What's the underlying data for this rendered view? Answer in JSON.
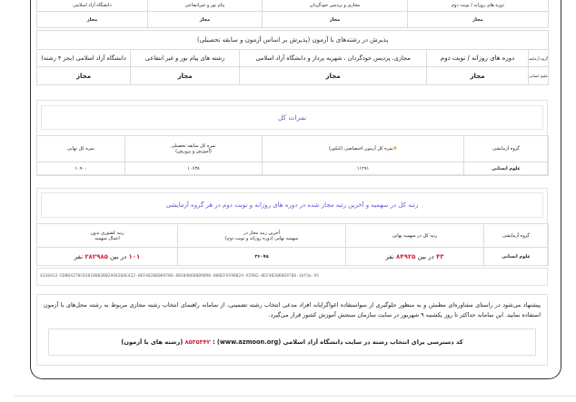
{
  "quota_table": {
    "headers": [
      "دوره های روزانه / نوبت دوم",
      "مجازی و پردیس خودگردان",
      "پیام نور و غیرانتفاعی",
      "دانشگاه آزاد اسلامی"
    ],
    "values": [
      "مجاز",
      "مجاز",
      "مجاز",
      "مجاز"
    ]
  },
  "exam_admission": {
    "title": "پذیرش در رشته‌های با آزمون (پذیرش بر اساس آزمون و سابقه تحصیلی)",
    "headers": [
      "گروه آزمایشی",
      "دوره های روزانه / نوبت دوم",
      "مجازی، پردیس خودگردان ، شهریه پرداز و دانشگاه آزاد اسلامی",
      "رشته های پیام نور و غیر انتفاعی",
      "دانشگاه آزاد اسلامی (بجز ۴ رشته)"
    ],
    "row": [
      "علوم انسانی",
      "مجاز",
      "مجاز",
      "مجاز",
      "مجاز"
    ]
  },
  "scores": {
    "title": "نمرات کل",
    "headers": [
      "گروه آزمایشی",
      "نمره کل آزمون اختصاصی (کنکور)",
      "نمره کل سابقه تحصیلی",
      "(آموزش و پرورش)",
      "نمره کل نهایی"
    ],
    "marker": "#",
    "row": [
      "علوم انسانی",
      "۱۱۲۹۱",
      "۱۰۶۳۸",
      "۱۰۹۰۰"
    ]
  },
  "ranks": {
    "title": "رتبه کل در سهمیه و آخرین رتبه مجاز شده در دوره های روزانه و نوبت دوم در هر گروه آزمایشی",
    "headers": [
      "گروه آزمایشی",
      "رتبه کل در سهمیه نهایی",
      "آخرین رتبه مجاز در",
      "سهمیه نهایی (دوره روزانه و نوبت دوم)",
      "رتبه کشوری بدون",
      "اعمال سهمیه"
    ],
    "row": {
      "group": "علوم انسانی",
      "quota_rank": "۴۳",
      "quota_among": "در بین",
      "quota_total": "۸۴۹۲۵",
      "unit": "نفر",
      "last_rank": "۳۶۰۷۵",
      "national_rank": "۱۰۱",
      "national_total": "۲۸۲۹۸۵"
    }
  },
  "hash": "4310412-EDB04270C01010002B02A9420AE422-0EF40206069786-80204060809090-000EFA598024-A5902-0EF40206069786-1bf3a-V5",
  "notice": {
    "text": "پیشنهاد می‌شود در راستای مشاوره‌ای مطمئن و به منظور جلوگیری از سواستفاده اغواگرایانه افراد مدعی انتخاب رشته تضمینی، از سامانه راهنمای انتخاب رشته مجازی مربوط به رشته محل‌های با آزمون استفاده نمایید. این سامانه حداکثر تا روز یکشنبه ۹ شهریور در سایت سازمان سنجش آموزش کشور قرار می‌گیرد.",
    "code_label": "کد دسترسی برای انتخاب رشته در سایت دانشگاه آزاد اسلامی (www.azmoon.org) :",
    "code_value": "۸۵۳۵۳۴۲",
    "code_suffix": "(رشته های با آزمون)"
  },
  "colors": {
    "accent": "#6a5acd",
    "highlight": "#d0253a"
  }
}
